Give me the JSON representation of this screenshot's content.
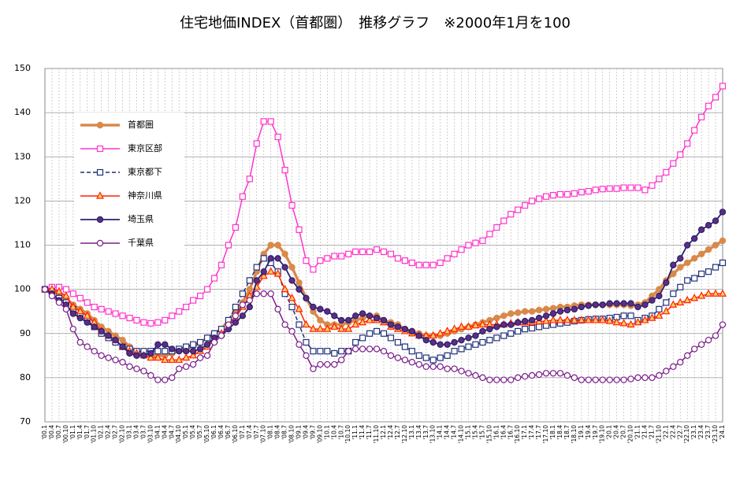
{
  "chart_data": {
    "type": "line",
    "title": "住宅地価INDEX（首都圏）　推移グラフ　※2000年1月を100",
    "categories": [
      "'00.1",
      "'00.4",
      "'00.7",
      "'00.10",
      "'01.1",
      "'01.4",
      "'01.7",
      "'01.10",
      "'02.1",
      "'02.4",
      "'02.7",
      "'02.10",
      "'03.1",
      "'03.4",
      "'03.7",
      "'03.10",
      "'04.1",
      "'04.4",
      "'04.7",
      "'04.10",
      "'05.1",
      "'05.4",
      "'05.7",
      "'05.10",
      "'06.1",
      "'06.4",
      "'06.7",
      "'06.10",
      "'07.1",
      "'07.4",
      "'07.7",
      "'07.10",
      "'08.1",
      "'08.4",
      "'08.7",
      "'08.10",
      "'09.1",
      "'09.4",
      "'09.7",
      "'09.10",
      "'10.1",
      "'10.4",
      "'10.7",
      "'10.10",
      "'11.1",
      "'11.4",
      "'11.7",
      "'11.10",
      "'12.1",
      "'12.4",
      "'12.7",
      "'12.10",
      "'13.1",
      "'13.4",
      "'13.7",
      "'13.10",
      "'14.1",
      "'14.4",
      "'14.7",
      "'14.10",
      "'15.1",
      "'15.4",
      "'15.7",
      "'15.10",
      "'16.1",
      "'16.4",
      "'16.7",
      "'16.10",
      "'17.1",
      "'17.4",
      "'17.7",
      "'17.10",
      "'18.1",
      "'18.4",
      "'18.7",
      "'18.10",
      "'19.1",
      "'19.4",
      "'19.7",
      "'19.10",
      "'20.1",
      "'20.4",
      "'20.7",
      "'20.10",
      "'21.1",
      "'21.4",
      "'21.7",
      "'21.10",
      "'22.1",
      "'22.4",
      "'22.7",
      "'22.10",
      "'23.1",
      "'23.4",
      "'23.7",
      "'23.10",
      "'24.1"
    ],
    "series": [
      {
        "name": "首都圏",
        "color": "#d9894a",
        "marker": "circle",
        "marker_fill": "#d9894a",
        "width": 3.5,
        "dashed": false,
        "values": [
          100,
          100,
          99,
          98,
          96.5,
          95.5,
          94.5,
          93,
          91.5,
          90.5,
          89.5,
          88.5,
          87,
          86,
          85.5,
          85,
          85,
          85,
          85.5,
          86,
          86.5,
          87,
          88,
          89,
          90,
          91,
          93,
          95,
          97,
          100,
          104,
          108,
          110,
          110,
          108,
          105,
          101.5,
          98,
          95,
          93,
          92,
          92,
          92,
          92.5,
          93,
          93.5,
          94,
          94,
          93,
          92.5,
          92,
          91,
          90.5,
          90,
          89.5,
          89.5,
          89.5,
          90,
          90.5,
          91,
          91.5,
          92,
          92.5,
          93,
          93.5,
          94,
          94.5,
          94.7,
          95,
          95,
          95.3,
          95.5,
          95.7,
          96,
          96,
          96.3,
          96.5,
          96.5,
          96.5,
          96.5,
          96.5,
          96.5,
          96.5,
          96.3,
          96.5,
          97,
          98.5,
          100,
          102,
          103.5,
          105,
          106,
          107,
          108,
          109,
          110,
          111
        ]
      },
      {
        "name": "東京区部",
        "color": "#ff33cc",
        "marker": "square",
        "marker_fill": "#ffffff",
        "width": 1.5,
        "dashed": false,
        "values": [
          100,
          100.5,
          100.5,
          100,
          99,
          98,
          97,
          96,
          95.5,
          95,
          94.5,
          94,
          93.5,
          93,
          92.5,
          92.3,
          92.5,
          93,
          94,
          95,
          96,
          97.5,
          98.5,
          100,
          102.5,
          105.5,
          110,
          114,
          121,
          125,
          133,
          138,
          138,
          134.5,
          127,
          119,
          113.5,
          106.5,
          104.5,
          106.5,
          107,
          107.5,
          107.5,
          108,
          108.5,
          108.5,
          108.5,
          109,
          108.5,
          108,
          107,
          106.5,
          106,
          105.5,
          105.5,
          105.5,
          106,
          107,
          108,
          109,
          110,
          110.5,
          111,
          112.5,
          114,
          115.5,
          117,
          118,
          119,
          120,
          120.5,
          121,
          121.3,
          121.5,
          121.5,
          121.7,
          122,
          122.2,
          122.5,
          122.7,
          122.8,
          122.8,
          123,
          123,
          123,
          122.5,
          123.5,
          125,
          126.5,
          128.5,
          130.5,
          133,
          136,
          139,
          141.5,
          143.5,
          146
        ]
      },
      {
        "name": "東京都下",
        "color": "#1f2f7a",
        "marker": "square",
        "marker_fill": "#ffffff",
        "width": 1.5,
        "dashed": true,
        "values": [
          100,
          99.5,
          98,
          97,
          95.5,
          94,
          93,
          91.5,
          90,
          89,
          88,
          87,
          86.5,
          86,
          86,
          86,
          86,
          86,
          86,
          86.5,
          87,
          87.5,
          88,
          89,
          90,
          91,
          93,
          96,
          99,
          102,
          105,
          107,
          106,
          104,
          99,
          96,
          92,
          88,
          86,
          86,
          86,
          85.5,
          86,
          86,
          88,
          89,
          90,
          90.5,
          90,
          89,
          88,
          87,
          86,
          85,
          84.5,
          84,
          84.5,
          85,
          86,
          86.5,
          87,
          87.5,
          88,
          88.5,
          89,
          89.5,
          90,
          90.5,
          91,
          91.2,
          91.5,
          91.8,
          92,
          92.3,
          92.5,
          92.8,
          93,
          93.2,
          93.3,
          93.3,
          93.5,
          93.7,
          94,
          94,
          93,
          93.5,
          94,
          95.5,
          97,
          99,
          100.5,
          102,
          102.5,
          103.5,
          104,
          105,
          106
        ]
      },
      {
        "name": "神奈川県",
        "color": "#ff2200",
        "marker": "triangle",
        "marker_fill": "#ffcc66",
        "width": 1.5,
        "dashed": false,
        "values": [
          100,
          100,
          99.5,
          98.5,
          96,
          95,
          94,
          92.5,
          90.5,
          89.5,
          88.5,
          87,
          86,
          85.5,
          85,
          84.5,
          84.5,
          84,
          84,
          84,
          84.5,
          85,
          86,
          87,
          88.5,
          90,
          91.5,
          93.5,
          96,
          98.5,
          100.5,
          103,
          104,
          103.5,
          100,
          98,
          95.5,
          92,
          91,
          91,
          91,
          91.5,
          91,
          91,
          92,
          92.5,
          93,
          93,
          92.5,
          91.5,
          91,
          90.5,
          90,
          89.5,
          89.5,
          89.5,
          90,
          90.5,
          91,
          91.5,
          91.5,
          91.8,
          92,
          92,
          92,
          92,
          92.3,
          92.5,
          92.5,
          92.5,
          92.7,
          92.8,
          93,
          93,
          93,
          93,
          93,
          93,
          93,
          93,
          92.8,
          92.5,
          92.3,
          92,
          92.5,
          93,
          93.5,
          94,
          95,
          96.5,
          97,
          97.5,
          98,
          98.5,
          99,
          99,
          99
        ]
      },
      {
        "name": "埼玉県",
        "color": "#2a1f6e",
        "marker": "circle",
        "marker_fill": "#5e2d82",
        "width": 1.8,
        "dashed": false,
        "values": [
          100,
          99,
          97.5,
          96.5,
          94.5,
          93.5,
          92.5,
          91.5,
          90.5,
          89.5,
          88.5,
          87,
          85.5,
          85,
          85,
          85.5,
          87.5,
          87.5,
          86.5,
          86,
          86,
          86,
          86.5,
          87.5,
          89,
          89.5,
          91,
          92.5,
          94,
          96,
          102,
          104,
          107,
          107,
          105,
          102,
          100,
          98,
          96,
          95.5,
          95,
          94,
          93,
          93,
          94,
          94.5,
          94,
          93.5,
          93,
          92,
          91.5,
          91,
          90.5,
          89.5,
          88.5,
          88,
          87.5,
          87.5,
          88,
          88.5,
          89,
          89.5,
          90.5,
          91,
          91.5,
          92,
          92,
          92.5,
          92.8,
          93,
          93.5,
          94,
          94.5,
          95,
          95.3,
          95.5,
          96,
          96.3,
          96.5,
          96.5,
          96.8,
          96.8,
          96.8,
          96.8,
          96,
          96.5,
          97.5,
          98.5,
          101.5,
          105.5,
          107,
          110,
          111.5,
          113.5,
          114.5,
          115.5,
          117.5
        ]
      },
      {
        "name": "千葉県",
        "color": "#7a1f8a",
        "marker": "circle",
        "marker_fill": "#ffffff",
        "width": 1.5,
        "dashed": false,
        "values": [
          100,
          98.5,
          97,
          95.5,
          91,
          88,
          87,
          86,
          85,
          84.5,
          84,
          83.5,
          82.5,
          82,
          81.5,
          80.5,
          79.5,
          79.5,
          80,
          82,
          82.5,
          83,
          84.5,
          85,
          88,
          89.5,
          92,
          94,
          96.5,
          97.5,
          99,
          99,
          99,
          95.5,
          92,
          90.5,
          87.5,
          85,
          82,
          83,
          83,
          83,
          84,
          86,
          86.5,
          86.5,
          86.5,
          86.5,
          86,
          85,
          84.5,
          84,
          83.5,
          83,
          82.5,
          82.5,
          82.5,
          82,
          82,
          81.5,
          81,
          80.5,
          80,
          79.5,
          79.5,
          79.5,
          79.5,
          80,
          80.3,
          80.5,
          80.7,
          81,
          81,
          81,
          80.5,
          80,
          79.5,
          79.5,
          79.5,
          79.5,
          79.5,
          79.5,
          79.5,
          79.7,
          80,
          80,
          80,
          80.5,
          81.5,
          82.5,
          83.5,
          85,
          86.5,
          87.5,
          88.5,
          89.5,
          92
        ]
      }
    ],
    "ylim": [
      70,
      150
    ],
    "yticks": [
      70,
      80,
      90,
      100,
      110,
      120,
      130,
      140,
      150
    ],
    "grid": true,
    "legend": "upper left"
  }
}
